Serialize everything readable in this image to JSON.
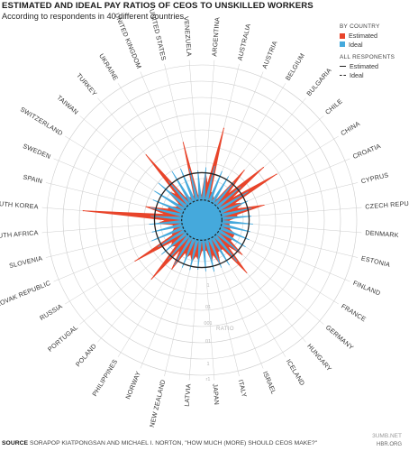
{
  "title": "ESTIMATED AND IDEAL PAY RATIOS OF CEOS TO UNSKILLED WORKERS",
  "subtitle": "According to respondents in 40 different countries.",
  "legend": {
    "by_country_header": "BY COUNTRY",
    "estimated_label": "Estimated",
    "ideal_label": "Ideal",
    "all_header": "ALL RESPONENTS",
    "all_estimated_label": "Estimated",
    "all_ideal_label": "Ideal"
  },
  "colors": {
    "estimated": "#e8442a",
    "ideal": "#45a9dc",
    "grid": "#cccccc",
    "reference": "#222222"
  },
  "source": {
    "label": "SOURCE",
    "text": "SORAPOP KIATPONGSAN AND MICHAEL I. NORTON, \"HOW MUCH (MORE) SHOULD CEOS MAKE?\""
  },
  "credit": "HBR.ORG",
  "watermark": "3UMB.NET",
  "chart_data": {
    "type": "radar",
    "axis_label": "RATIO",
    "tick_labels": [
      "1",
      "01",
      "001",
      "01",
      "1",
      "r1"
    ],
    "countries": [
      "ARGENTINA",
      "AUSTRALIA",
      "AUSTRIA",
      "BELGIUM",
      "BULGARIA",
      "CHILE",
      "CHINA",
      "CROATIA",
      "CYPRUS",
      "CZECH REPUBLIC",
      "DENMARK",
      "ESTONIA",
      "FINLAND",
      "FRANCE",
      "GERMANY",
      "HUNGARY",
      "ICELAND",
      "ISRAEL",
      "ITALY",
      "JAPAN",
      "LATVIA",
      "NEW ZEALAND",
      "NORWAY",
      "PHILIPPINES",
      "POLAND",
      "PORTUGAL",
      "RUSSIA",
      "SLOVAK REPUBLIC",
      "SLOVENIA",
      "SOUTH AFRICA",
      "SOUTH KOREA",
      "SPAIN",
      "SWEDEN",
      "SWITZERLAND",
      "TAIWAN",
      "TURKEY",
      "UKRAINE",
      "UNITED KINGDOM",
      "UNITED STATES",
      "VENEZUELA"
    ],
    "series": [
      {
        "name": "Estimated",
        "values": [
          6,
          60,
          2,
          1.5,
          15,
          32,
          44,
          5,
          14,
          3,
          1.8,
          2,
          3,
          3,
          8,
          18,
          3,
          6,
          4.5,
          2.2,
          4,
          4.5,
          4,
          10,
          27,
          4,
          28,
          2.5,
          2,
          5,
          190,
          10,
          3,
          1.9,
          5,
          40,
          1.8,
          1.5,
          30,
          1.5
        ]
      },
      {
        "name": "Ideal",
        "values": [
          1.3,
          1.5,
          1.3,
          1.2,
          1.1,
          1.2,
          1.4,
          1.1,
          1.2,
          1.1,
          1.2,
          1.1,
          1.2,
          1.2,
          1.1,
          1.4,
          1.3,
          1.2,
          1.3,
          1.2,
          1.1,
          1.2,
          1.2,
          1.3,
          1.2,
          1.3,
          1.2,
          1.4,
          1.2,
          1.3,
          1.2,
          1.3,
          1.3,
          1.5,
          1.6,
          1.2,
          1.6,
          1.5,
          1.3,
          1.1
        ]
      }
    ],
    "all_respondents": {
      "estimated": 10,
      "ideal": 4.6
    }
  }
}
